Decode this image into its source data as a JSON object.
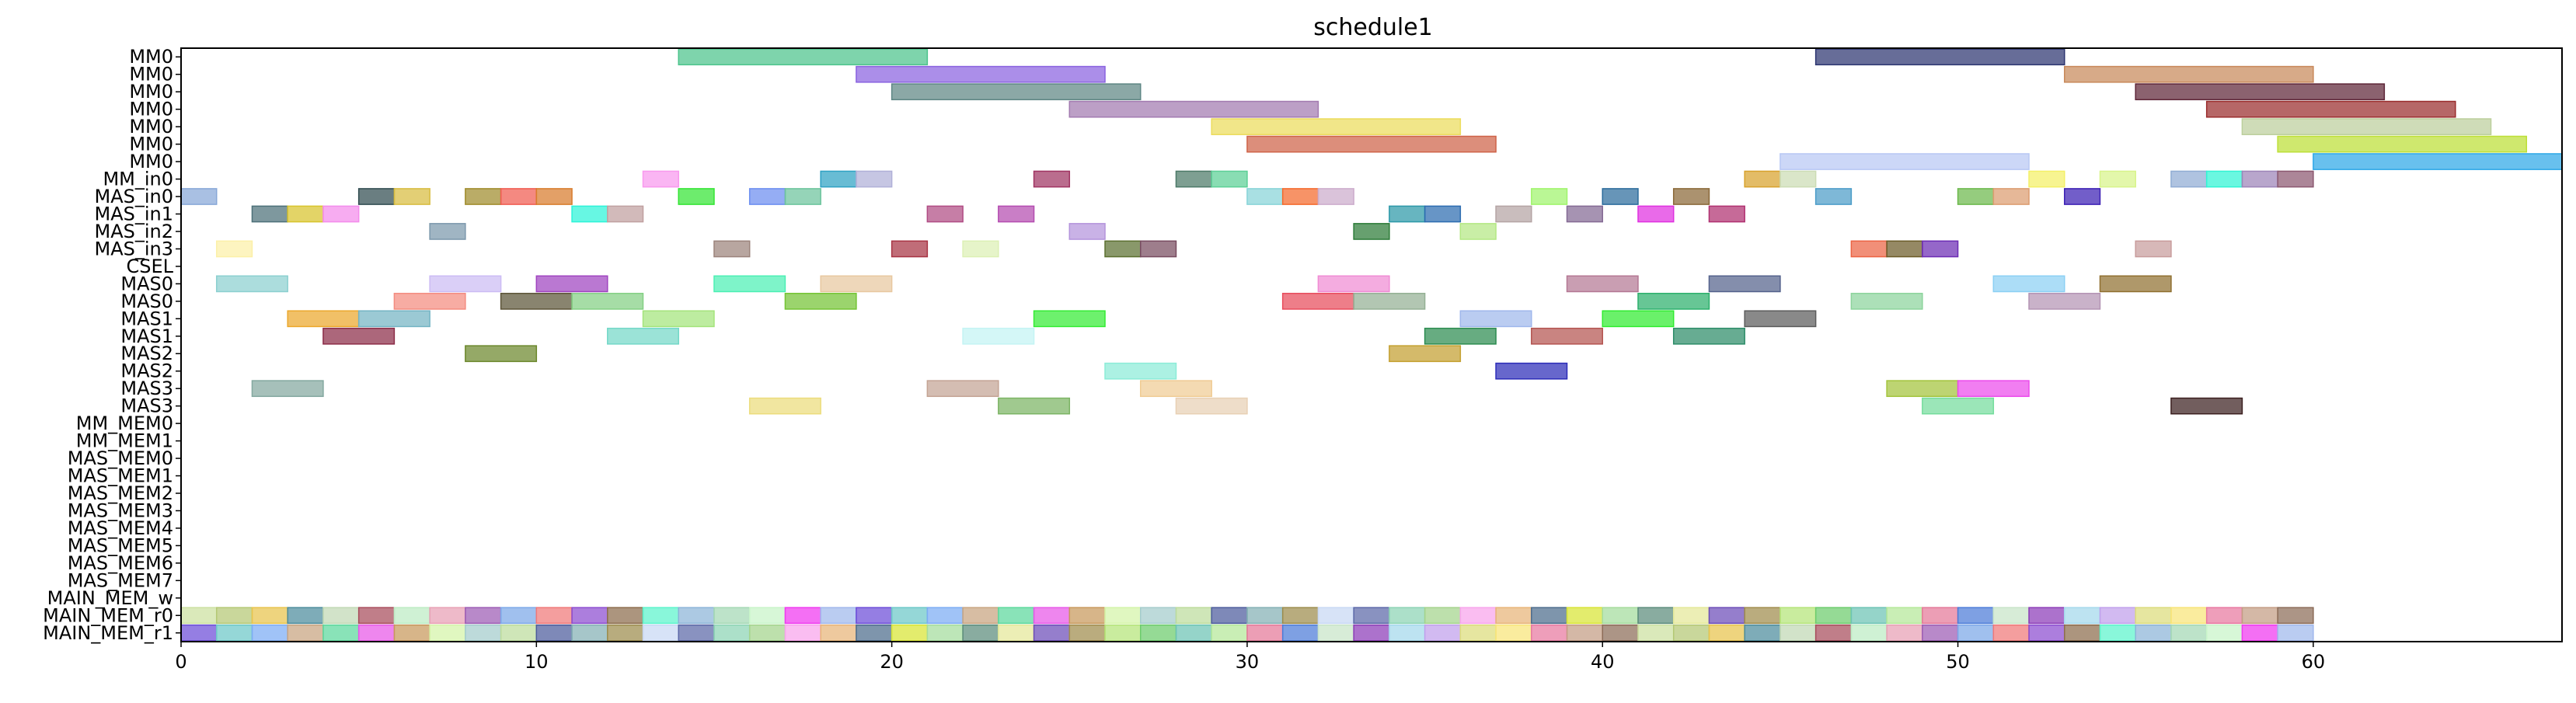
{
  "chart_data": {
    "type": "gantt",
    "title": "schedule1",
    "xlabel": "",
    "ylabel": "",
    "xlim": [
      0,
      67
    ],
    "xticks": [
      0,
      10,
      20,
      30,
      40,
      50,
      60
    ],
    "grid": false,
    "rows": [
      "MM0",
      "MM0",
      "MM0",
      "MM0",
      "MM0",
      "MM0",
      "MM0",
      "MM_in0",
      "MAS_in0",
      "MAS_in1",
      "MAS_in2",
      "MAS_in3",
      "CSEL",
      "MAS0",
      "MAS0",
      "MAS1",
      "MAS1",
      "MAS2",
      "MAS2",
      "MAS3",
      "MAS3",
      "MM_MEM0",
      "MM_MEM1",
      "MAS_MEM0",
      "MAS_MEM1",
      "MAS_MEM2",
      "MAS_MEM3",
      "MAS_MEM4",
      "MAS_MEM5",
      "MAS_MEM6",
      "MAS_MEM7",
      "MAIN_MEM_w",
      "MAIN_MEM_r0",
      "MAIN_MEM_r1"
    ],
    "tasks": [
      {
        "row": 0,
        "start": 14,
        "end": 21,
        "color": "#4cc48c"
      },
      {
        "row": 0,
        "start": 46,
        "end": 53,
        "color": "#2c3570"
      },
      {
        "row": 1,
        "start": 19,
        "end": 26,
        "color": "#8a63e0"
      },
      {
        "row": 1,
        "start": 53,
        "end": 60,
        "color": "#c8895a"
      },
      {
        "row": 2,
        "start": 20,
        "end": 27,
        "color": "#5e8684"
      },
      {
        "row": 2,
        "start": 55,
        "end": 62,
        "color": "#5e2638"
      },
      {
        "row": 3,
        "start": 25,
        "end": 32,
        "color": "#a27ab0"
      },
      {
        "row": 3,
        "start": 57,
        "end": 64,
        "color": "#9a2c2c"
      },
      {
        "row": 4,
        "start": 29,
        "end": 36,
        "color": "#ecdc5c"
      },
      {
        "row": 4,
        "start": 58,
        "end": 65,
        "color": "#bccf9c"
      },
      {
        "row": 5,
        "start": 30,
        "end": 37,
        "color": "#cf6248"
      },
      {
        "row": 5,
        "start": 59,
        "end": 66,
        "color": "#bddf36"
      },
      {
        "row": 6,
        "start": 45,
        "end": 52,
        "color": "#b8c8f4"
      },
      {
        "row": 6,
        "start": 60,
        "end": 67,
        "color": "#2ea8e8"
      },
      {
        "row": 7,
        "start": 13,
        "end": 14,
        "color": "#f898ee"
      },
      {
        "row": 7,
        "start": 18,
        "end": 19,
        "color": "#2ea2c4"
      },
      {
        "row": 7,
        "start": 19,
        "end": 20,
        "color": "#b0b0d8"
      },
      {
        "row": 7,
        "start": 24,
        "end": 25,
        "color": "#a03462"
      },
      {
        "row": 7,
        "start": 28,
        "end": 29,
        "color": "#4c7a68"
      },
      {
        "row": 7,
        "start": 29,
        "end": 30,
        "color": "#5cd096"
      },
      {
        "row": 7,
        "start": 44,
        "end": 45,
        "color": "#d8a22c"
      },
      {
        "row": 7,
        "start": 45,
        "end": 46,
        "color": "#ccdcb4"
      },
      {
        "row": 7,
        "start": 52,
        "end": 53,
        "color": "#f4f066"
      },
      {
        "row": 7,
        "start": 54,
        "end": 55,
        "color": "#d8f48a"
      },
      {
        "row": 7,
        "start": 56,
        "end": 57,
        "color": "#90acd4"
      },
      {
        "row": 7,
        "start": 57,
        "end": 58,
        "color": "#30f4d4"
      },
      {
        "row": 7,
        "start": 58,
        "end": 59,
        "color": "#9c84b8"
      },
      {
        "row": 7,
        "start": 59,
        "end": 60,
        "color": "#8c5870"
      },
      {
        "row": 8,
        "start": 0,
        "end": 1,
        "color": "#88a8d8"
      },
      {
        "row": 8,
        "start": 5,
        "end": 6,
        "color": "#304c50"
      },
      {
        "row": 8,
        "start": 6,
        "end": 7,
        "color": "#d8bc40"
      },
      {
        "row": 8,
        "start": 8,
        "end": 9,
        "color": "#a08c2c"
      },
      {
        "row": 8,
        "start": 9,
        "end": 10,
        "color": "#f05c50"
      },
      {
        "row": 8,
        "start": 10,
        "end": 11,
        "color": "#d87c2c"
      },
      {
        "row": 8,
        "start": 14,
        "end": 15,
        "color": "#34e434"
      },
      {
        "row": 8,
        "start": 16,
        "end": 17,
        "color": "#6c8ef0"
      },
      {
        "row": 8,
        "start": 17,
        "end": 18,
        "color": "#6cc49c"
      },
      {
        "row": 8,
        "start": 30,
        "end": 31,
        "color": "#88d4d8"
      },
      {
        "row": 8,
        "start": 31,
        "end": 32,
        "color": "#f46a2c"
      },
      {
        "row": 8,
        "start": 32,
        "end": 33,
        "color": "#ccaccc"
      },
      {
        "row": 8,
        "start": 38,
        "end": 39,
        "color": "#a0f46c"
      },
      {
        "row": 8,
        "start": 40,
        "end": 41,
        "color": "#2c6c9c"
      },
      {
        "row": 8,
        "start": 42,
        "end": 43,
        "color": "#8a6838"
      },
      {
        "row": 8,
        "start": 46,
        "end": 47,
        "color": "#4c9cc8"
      },
      {
        "row": 8,
        "start": 50,
        "end": 51,
        "color": "#6cb84c"
      },
      {
        "row": 8,
        "start": 51,
        "end": 52,
        "color": "#dc9c70"
      },
      {
        "row": 8,
        "start": 53,
        "end": 54,
        "color": "#3c20b4"
      },
      {
        "row": 9,
        "start": 2,
        "end": 3,
        "color": "#4c7078"
      },
      {
        "row": 9,
        "start": 3,
        "end": 4,
        "color": "#d8c42c"
      },
      {
        "row": 9,
        "start": 4,
        "end": 5,
        "color": "#f48cec"
      },
      {
        "row": 9,
        "start": 11,
        "end": 12,
        "color": "#2cf4d8"
      },
      {
        "row": 9,
        "start": 12,
        "end": 13,
        "color": "#c0a0a0"
      },
      {
        "row": 9,
        "start": 21,
        "end": 22,
        "color": "#b04c84"
      },
      {
        "row": 9,
        "start": 23,
        "end": 24,
        "color": "#b44cb0"
      },
      {
        "row": 9,
        "start": 34,
        "end": 35,
        "color": "#2c98a8"
      },
      {
        "row": 9,
        "start": 35,
        "end": 36,
        "color": "#2c6cb0"
      },
      {
        "row": 9,
        "start": 37,
        "end": 38,
        "color": "#b4a4a4"
      },
      {
        "row": 9,
        "start": 39,
        "end": 40,
        "color": "#846a94"
      },
      {
        "row": 9,
        "start": 41,
        "end": 42,
        "color": "#e030e0"
      },
      {
        "row": 9,
        "start": 43,
        "end": 44,
        "color": "#b03070"
      },
      {
        "row": 10,
        "start": 7,
        "end": 8,
        "color": "#7c98ac"
      },
      {
        "row": 10,
        "start": 25,
        "end": 26,
        "color": "#b494dc"
      },
      {
        "row": 10,
        "start": 33,
        "end": 34,
        "color": "#2c7c38"
      },
      {
        "row": 10,
        "start": 36,
        "end": 37,
        "color": "#b4e884"
      },
      {
        "row": 11,
        "start": 1,
        "end": 2,
        "color": "#fcf0a8"
      },
      {
        "row": 11,
        "start": 15,
        "end": 16,
        "color": "#9c847c"
      },
      {
        "row": 11,
        "start": 20,
        "end": 21,
        "color": "#a83444"
      },
      {
        "row": 11,
        "start": 22,
        "end": 23,
        "color": "#dcf0b4"
      },
      {
        "row": 11,
        "start": 26,
        "end": 27,
        "color": "#5c7030"
      },
      {
        "row": 11,
        "start": 27,
        "end": 28,
        "color": "#784c60"
      },
      {
        "row": 11,
        "start": 47,
        "end": 48,
        "color": "#ec6444"
      },
      {
        "row": 11,
        "start": 48,
        "end": 49,
        "color": "#6c5c28"
      },
      {
        "row": 11,
        "start": 49,
        "end": 50,
        "color": "#6c2cb4"
      },
      {
        "row": 11,
        "start": 55,
        "end": 56,
        "color": "#c89c9c"
      },
      {
        "row": 13,
        "start": 1,
        "end": 3,
        "color": "#8cd0d0"
      },
      {
        "row": 13,
        "start": 7,
        "end": 9,
        "color": "#ccbcf4"
      },
      {
        "row": 13,
        "start": 10,
        "end": 12,
        "color": "#a044c0"
      },
      {
        "row": 13,
        "start": 15,
        "end": 17,
        "color": "#4cf0b4"
      },
      {
        "row": 13,
        "start": 18,
        "end": 20,
        "color": "#e8c8a0"
      },
      {
        "row": 13,
        "start": 32,
        "end": 34,
        "color": "#f08cd4"
      },
      {
        "row": 13,
        "start": 39,
        "end": 41,
        "color": "#b47894"
      },
      {
        "row": 13,
        "start": 43,
        "end": 45,
        "color": "#54628c"
      },
      {
        "row": 13,
        "start": 51,
        "end": 53,
        "color": "#8cd0f4"
      },
      {
        "row": 13,
        "start": 54,
        "end": 56,
        "color": "#907030"
      },
      {
        "row": 14,
        "start": 6,
        "end": 8,
        "color": "#f48c80"
      },
      {
        "row": 14,
        "start": 9,
        "end": 11,
        "color": "#5c5438"
      },
      {
        "row": 14,
        "start": 11,
        "end": 13,
        "color": "#84d084"
      },
      {
        "row": 14,
        "start": 17,
        "end": 19,
        "color": "#74c434"
      },
      {
        "row": 14,
        "start": 31,
        "end": 33,
        "color": "#e84c5c"
      },
      {
        "row": 14,
        "start": 33,
        "end": 35,
        "color": "#94b094"
      },
      {
        "row": 14,
        "start": 41,
        "end": 43,
        "color": "#2cb06c"
      },
      {
        "row": 14,
        "start": 47,
        "end": 49,
        "color": "#8cd49c"
      },
      {
        "row": 14,
        "start": 52,
        "end": 54,
        "color": "#b494b4"
      },
      {
        "row": 15,
        "start": 3,
        "end": 5,
        "color": "#eca82c"
      },
      {
        "row": 15,
        "start": 5,
        "end": 7,
        "color": "#74b4c4"
      },
      {
        "row": 15,
        "start": 13,
        "end": 15,
        "color": "#a4e47c"
      },
      {
        "row": 15,
        "start": 24,
        "end": 26,
        "color": "#34ec34"
      },
      {
        "row": 15,
        "start": 36,
        "end": 38,
        "color": "#a0b8ec"
      },
      {
        "row": 15,
        "start": 40,
        "end": 42,
        "color": "#30ec30"
      },
      {
        "row": 15,
        "start": 44,
        "end": 46,
        "color": "#5c5c5c"
      },
      {
        "row": 16,
        "start": 4,
        "end": 6,
        "color": "#8c2c48"
      },
      {
        "row": 16,
        "start": 12,
        "end": 14,
        "color": "#74d8c8"
      },
      {
        "row": 16,
        "start": 22,
        "end": 24,
        "color": "#c4f4f4"
      },
      {
        "row": 16,
        "start": 35,
        "end": 37,
        "color": "#2c8c50"
      },
      {
        "row": 16,
        "start": 38,
        "end": 40,
        "color": "#b45450"
      },
      {
        "row": 16,
        "start": 42,
        "end": 44,
        "color": "#2c8c68"
      },
      {
        "row": 17,
        "start": 8,
        "end": 10,
        "color": "#6c882c"
      },
      {
        "row": 17,
        "start": 34,
        "end": 36,
        "color": "#c4a030"
      },
      {
        "row": 18,
        "start": 26,
        "end": 28,
        "color": "#8cecd8"
      },
      {
        "row": 18,
        "start": 37,
        "end": 39,
        "color": "#2c2cb8"
      },
      {
        "row": 19,
        "start": 2,
        "end": 4,
        "color": "#84a8a0"
      },
      {
        "row": 19,
        "start": 21,
        "end": 23,
        "color": "#c4a494"
      },
      {
        "row": 19,
        "start": 27,
        "end": 29,
        "color": "#f0cc94"
      },
      {
        "row": 19,
        "start": 48,
        "end": 50,
        "color": "#a4c43c"
      },
      {
        "row": 19,
        "start": 50,
        "end": 52,
        "color": "#ec4cec"
      },
      {
        "row": 20,
        "start": 16,
        "end": 18,
        "color": "#ecdc7c"
      },
      {
        "row": 20,
        "start": 23,
        "end": 25,
        "color": "#7cb464"
      },
      {
        "row": 20,
        "start": 28,
        "end": 30,
        "color": "#e8d0b4"
      },
      {
        "row": 20,
        "start": 49,
        "end": 51,
        "color": "#74dc9c"
      },
      {
        "row": 20,
        "start": 56,
        "end": 58,
        "color": "#3c2020"
      }
    ],
    "memory_rows": [
      32,
      33
    ],
    "memory_slots": 60,
    "memory_palette": [
      "#cce0a0",
      "#6c4cb8",
      "#d4f4a8",
      "#7ca8e8",
      "#8c3cb8",
      "#a4d48c",
      "#a0b8ec",
      "#b4c874",
      "#a08c4c",
      "#a4cccc",
      "#f07878",
      "#a4d8ec",
      "#f8a4ec",
      "#6c4cd8",
      "#e8c44c",
      "#b4e478",
      "#bcdc9c",
      "#8c4cd0",
      "#c0a0ec",
      "#e8b478",
      "#6cc8c8",
      "#4c8c9c",
      "#6ccc6c",
      "#4c5c9c",
      "#8c6c4c",
      "#dcdc7c",
      "#4c6c8c",
      "#7cacf4",
      "#c0d8b4",
      "#6cc4b4",
      "#84b0b4",
      "#5cf4cc",
      "#f8e478",
      "#d8e434",
      "#c8a480",
      "#a84c5c",
      "#b4e898",
      "#9c8c4c",
      "#8cb4d8",
      "#e878a0",
      "#a4dc9c",
      "#5cd89c",
      "#bcecc4",
      "#e47898",
      "#c8d8f4",
      "#a4d8b4",
      "#c49c84",
      "#5c8c7c",
      "#e858e8",
      "#e8a0b4",
      "#4c7cd8",
      "#5c68a8",
      "#c8f4c8",
      "#8c6c58",
      "#e4e898",
      "#c8985c",
      "#9c5cb4",
      "#c8e4c8",
      "#8cd4b4",
      "#f038f0"
    ]
  }
}
